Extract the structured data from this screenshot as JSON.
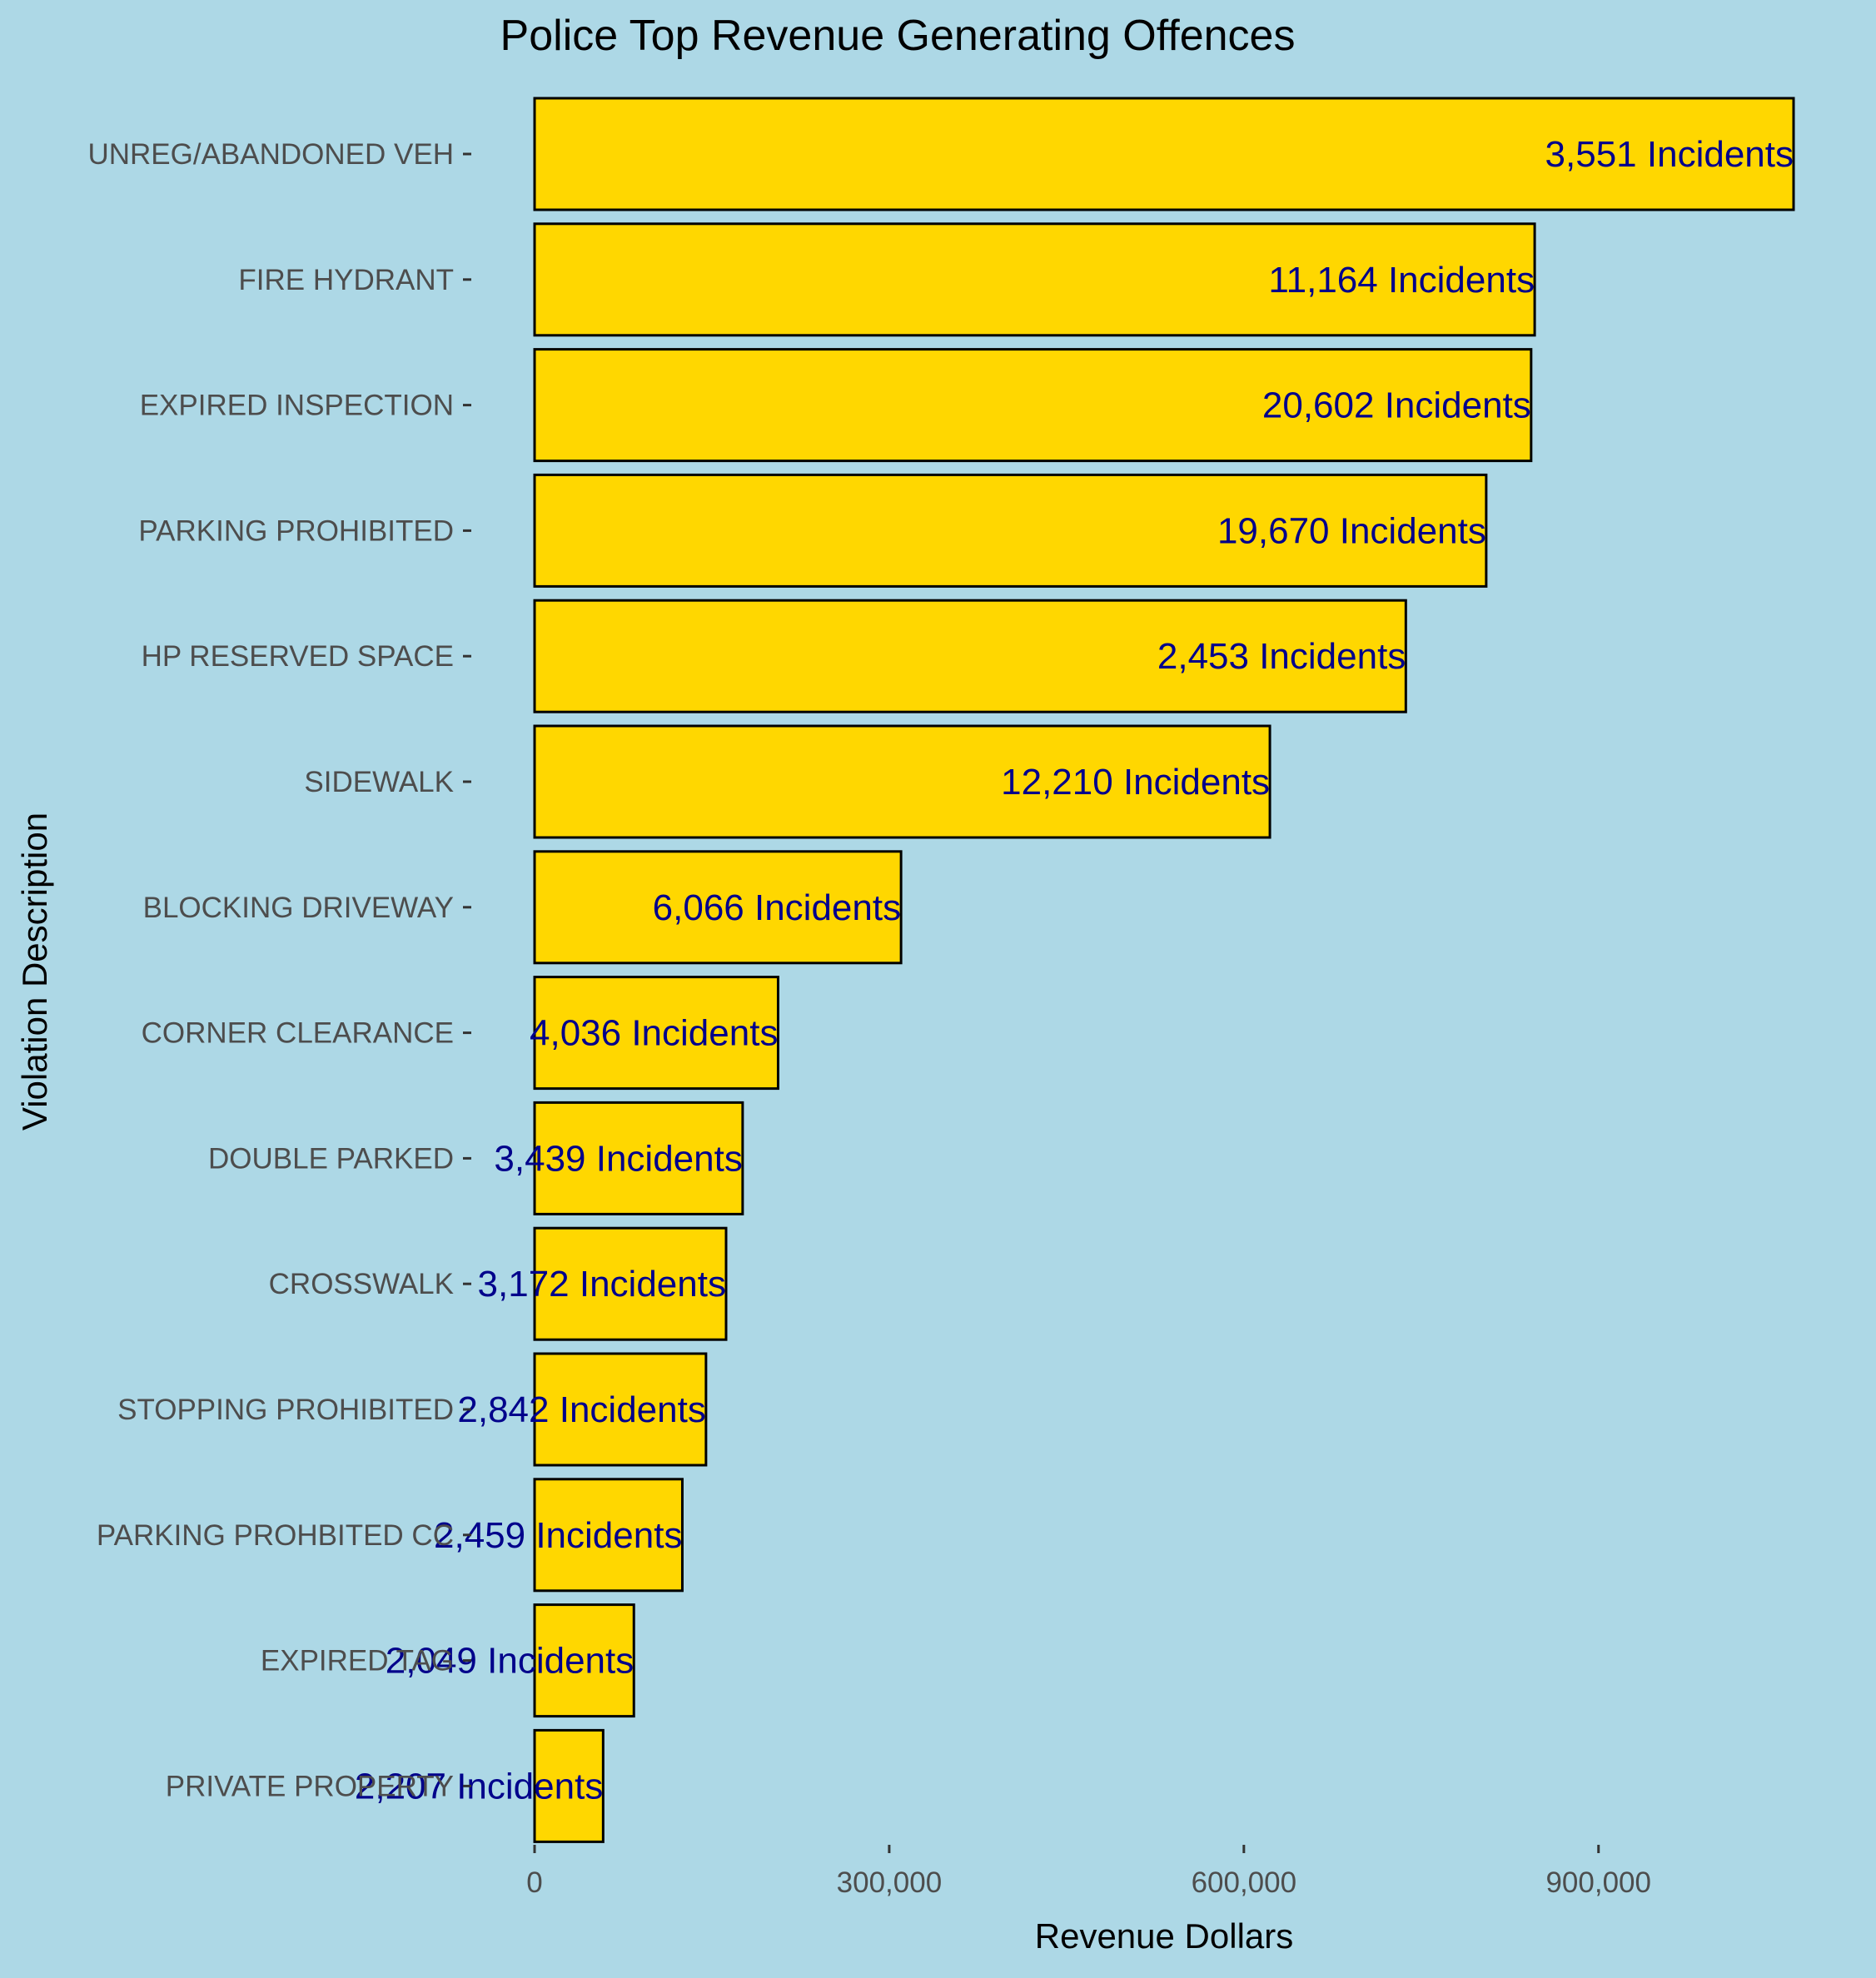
{
  "chart_data": {
    "type": "bar",
    "orientation": "horizontal",
    "title": "Police Top Revenue Generating Offences",
    "xlabel": "Revenue Dollars",
    "ylabel": "Violation Description",
    "xlim": [
      0,
      1070000
    ],
    "xticks": [
      0,
      300000,
      600000,
      900000
    ],
    "xtick_labels": [
      "0",
      "300,000",
      "600,000",
      "900,000"
    ],
    "grid": false,
    "categories": [
      "UNREG/ABANDONED VEH",
      "FIRE HYDRANT",
      "EXPIRED INSPECTION",
      "PARKING PROHIBITED",
      "HP RESERVED SPACE",
      "SIDEWALK",
      "BLOCKING DRIVEWAY",
      "CORNER CLEARANCE",
      "DOUBLE PARKED",
      "CROSSWALK",
      "STOPPING PROHIBITED",
      "PARKING PROHBITED CC",
      "EXPIRED TAG",
      "PRIVATE PROPERTY"
    ],
    "values": [
      1065000,
      846000,
      843000,
      805000,
      737000,
      622000,
      310000,
      206000,
      176000,
      162000,
      145000,
      125000,
      84000,
      58000
    ],
    "data_labels": [
      "3,551 Incidents",
      "11,164 Incidents",
      "20,602 Incidents",
      "19,670 Incidents",
      "2,453 Incidents",
      "12,210 Incidents",
      "6,066 Incidents",
      "4,036 Incidents",
      "3,439 Incidents",
      "3,172 Incidents",
      "2,842 Incidents",
      "2,459 Incidents",
      "2,049 Incidents",
      "2,207 Incidents"
    ],
    "colors": {
      "background": "#ADD8E6",
      "bar_fill": "#FFD700",
      "bar_stroke": "#000000",
      "data_label": "#00008B",
      "axis_text": "#4D4D4D",
      "title": "#000000"
    }
  }
}
